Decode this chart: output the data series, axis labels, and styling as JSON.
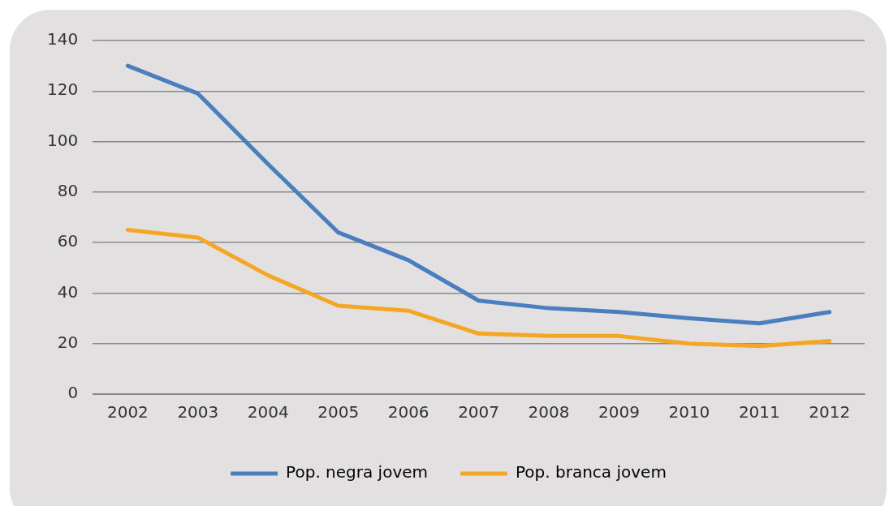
{
  "chart_data": {
    "type": "line",
    "categories": [
      "2002",
      "2003",
      "2004",
      "2005",
      "2006",
      "2007",
      "2008",
      "2009",
      "2010",
      "2011",
      "2012"
    ],
    "series": [
      {
        "name": "Pop. negra jovem",
        "color": "#4a7ebf",
        "values": [
          130,
          119,
          91,
          64,
          53,
          37,
          34,
          32.5,
          30,
          28,
          32.5
        ]
      },
      {
        "name": "Pop. branca jovem",
        "color": "#f5a623",
        "values": [
          65,
          62,
          47,
          35,
          33,
          24,
          23,
          23,
          20,
          19,
          21
        ]
      }
    ],
    "ylim": [
      0,
      140
    ],
    "yticks": [
      0,
      20,
      40,
      60,
      80,
      100,
      120,
      140
    ],
    "grid": "y",
    "legend": "bottom",
    "marker": "none",
    "line_style": "solid"
  }
}
